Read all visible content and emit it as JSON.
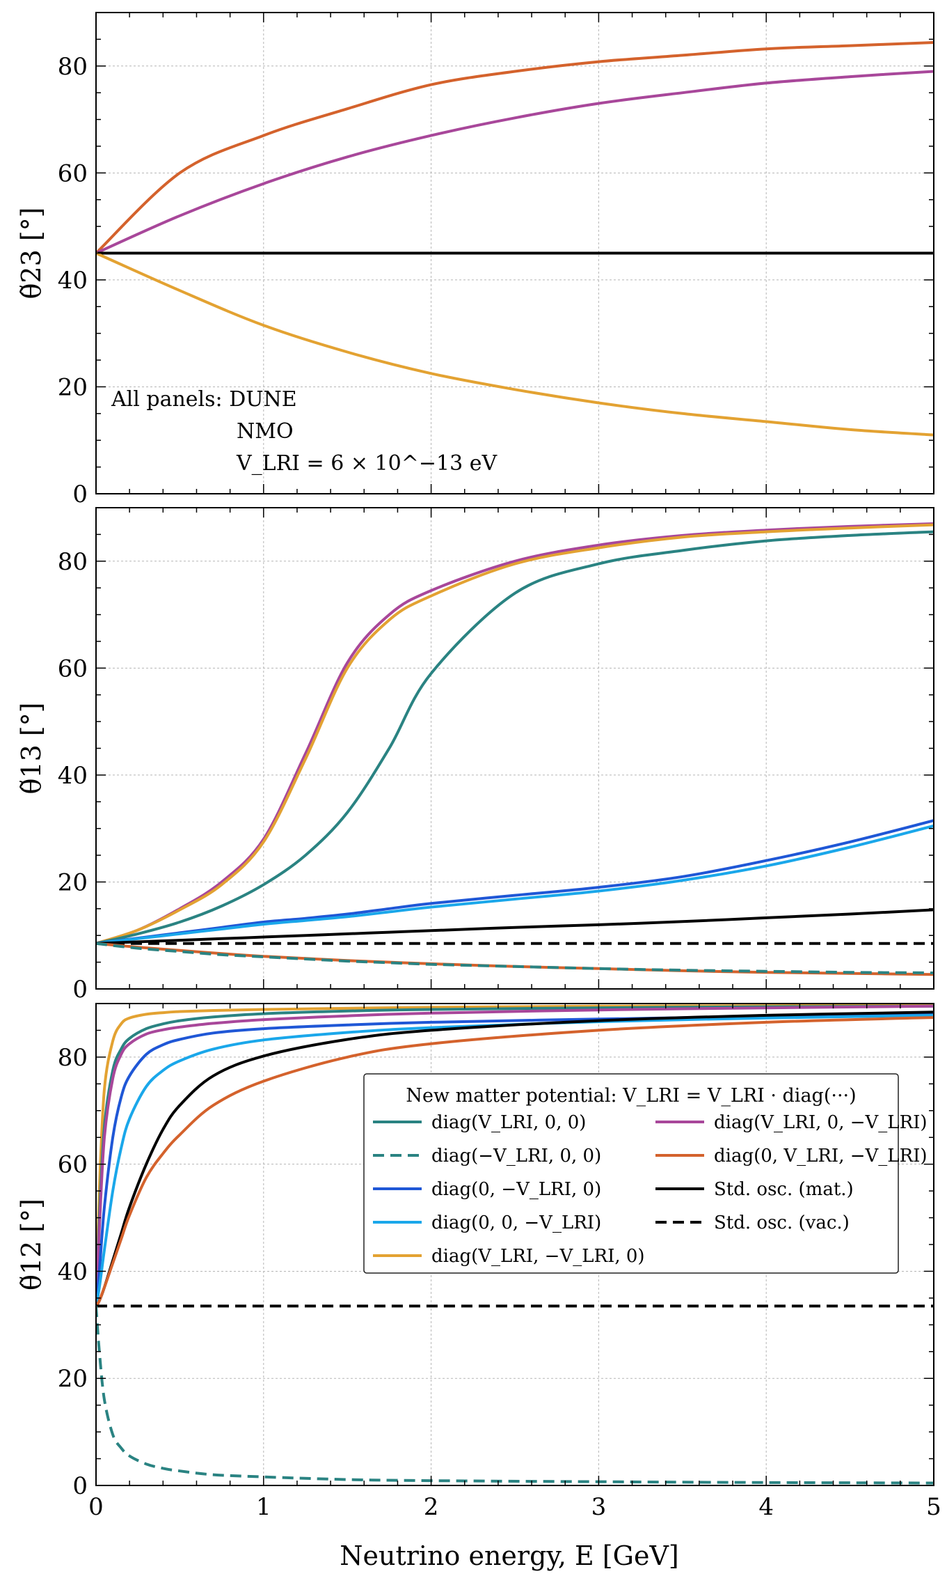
{
  "chart_data": {
    "type": "line",
    "shared_x": {
      "label": "Neutrino energy, E [GeV]",
      "range": [
        0,
        5
      ],
      "ticks": [
        "0",
        "1",
        "2",
        "3",
        "4",
        "5"
      ]
    },
    "annotation": {
      "line1": "All panels: DUNE",
      "line2": "NMO",
      "line3": "V_LRI = 6 × 10^−13 eV"
    },
    "legend": {
      "title": "New matter potential: V_LRI = V_LRI · diag(···)",
      "entries": [
        {
          "key": "diag_v00",
          "label": "diag(V_LRI, 0, 0)",
          "color": "#2a8382",
          "dash": "solid"
        },
        {
          "key": "diag_mv00",
          "label": "diag(−V_LRI, 0, 0)",
          "color": "#2a8382",
          "dash": "dashed"
        },
        {
          "key": "diag_0mv0",
          "label": "diag(0, −V_LRI, 0)",
          "color": "#1f57d6",
          "dash": "solid"
        },
        {
          "key": "diag_00mv",
          "label": "diag(0, 0, −V_LRI)",
          "color": "#1aa7ea",
          "dash": "solid"
        },
        {
          "key": "diag_vmv0",
          "label": "diag(V_LRI, −V_LRI, 0)",
          "color": "#e3a232",
          "dash": "solid"
        },
        {
          "key": "diag_v0mv",
          "label": "diag(V_LRI, 0, −V_LRI)",
          "color": "#a8479a",
          "dash": "solid"
        },
        {
          "key": "diag_0vmv",
          "label": "diag(0, V_LRI, −V_LRI)",
          "color": "#d4622c",
          "dash": "solid"
        },
        {
          "key": "std_mat",
          "label": "Std. osc. (mat.)",
          "color": "#000000",
          "dash": "solid"
        },
        {
          "key": "std_vac",
          "label": "Std. osc. (vac.)",
          "color": "#000000",
          "dash": "dashed"
        }
      ]
    },
    "panels": [
      {
        "id": "theta23",
        "ylabel": "θ̃23 [°]",
        "ylim": [
          0,
          90
        ],
        "yticks": [
          "0",
          "20",
          "40",
          "60",
          "80"
        ],
        "x": [
          0,
          0.5,
          1,
          1.5,
          2,
          2.5,
          3,
          3.5,
          4,
          4.5,
          5
        ],
        "series": [
          {
            "key": "diag_0vmv",
            "values": [
              45,
              60,
              67,
              72,
              76.5,
              79,
              80.8,
              82,
              83.2,
              83.8,
              84.4
            ]
          },
          {
            "key": "diag_v0mv",
            "values": [
              45,
              52,
              58,
              63,
              67,
              70.3,
              73,
              75,
              76.8,
              78,
              79
            ]
          },
          {
            "key": "std_mat",
            "values": [
              45,
              45,
              45,
              45,
              45,
              45,
              45,
              45,
              45,
              45,
              45
            ]
          },
          {
            "key": "diag_vmv0",
            "values": [
              45,
              38,
              31.5,
              26.5,
              22.5,
              19.5,
              17,
              15,
              13.5,
              12,
              11
            ]
          }
        ]
      },
      {
        "id": "theta13",
        "ylabel": "θ̃13 [°]",
        "ylim": [
          0,
          90
        ],
        "yticks": [
          "0",
          "20",
          "40",
          "60",
          "80"
        ],
        "x": [
          0,
          0.25,
          0.5,
          0.75,
          1,
          1.25,
          1.5,
          1.75,
          2,
          2.5,
          3,
          3.5,
          4,
          4.5,
          5
        ],
        "series": [
          {
            "key": "diag_v0mv",
            "values": [
              8.5,
              11,
              15,
              20,
              28,
              44,
              61,
              70,
              74.5,
              80,
              83,
              84.8,
              85.8,
              86.5,
              87
            ]
          },
          {
            "key": "diag_vmv0",
            "values": [
              8.5,
              11,
              14.8,
              19.5,
              27.5,
              43,
              60,
              69,
              73.5,
              79.5,
              82.5,
              84.5,
              85.5,
              86.2,
              86.8
            ]
          },
          {
            "key": "diag_v00",
            "values": [
              8.5,
              10.3,
              12.5,
              15.5,
              19.5,
              25,
              33,
              45,
              59,
              74,
              79.5,
              82,
              83.8,
              84.8,
              85.5
            ]
          },
          {
            "key": "diag_0mv0",
            "values": [
              8.5,
              9.5,
              10.5,
              11.5,
              12.5,
              13.2,
              14,
              15,
              16,
              17.5,
              19,
              21,
              24,
              27.5,
              31.5
            ]
          },
          {
            "key": "diag_00mv",
            "values": [
              8.5,
              9.4,
              10.3,
              11.2,
              12.1,
              12.8,
              13.5,
              14.4,
              15.3,
              16.8,
              18.3,
              20.3,
              23,
              26.5,
              30.5
            ]
          },
          {
            "key": "std_mat",
            "values": [
              8.5,
              8.8,
              9.1,
              9.4,
              9.7,
              10,
              10.3,
              10.6,
              10.9,
              11.5,
              12,
              12.6,
              13.3,
              14,
              14.8
            ]
          },
          {
            "key": "std_vac",
            "values": [
              8.5,
              8.5,
              8.5,
              8.5,
              8.5,
              8.5,
              8.5,
              8.5,
              8.5,
              8.5,
              8.5,
              8.5,
              8.5,
              8.5,
              8.5
            ]
          },
          {
            "key": "diag_0vmv",
            "values": [
              8.5,
              7.8,
              7.2,
              6.6,
              6.1,
              5.7,
              5.3,
              5,
              4.7,
              4.2,
              3.8,
              3.4,
              3.1,
              2.9,
              2.7
            ]
          },
          {
            "key": "diag_mv00",
            "values": [
              8.5,
              7.6,
              7,
              6.4,
              6,
              5.6,
              5.2,
              4.9,
              4.6,
              4.2,
              3.8,
              3.5,
              3.3,
              3.1,
              3
            ]
          }
        ]
      },
      {
        "id": "theta12",
        "ylabel": "θ̃12 [°]",
        "ylim": [
          0,
          90
        ],
        "yticks": [
          "0",
          "20",
          "40",
          "60",
          "80"
        ],
        "x": [
          0,
          0.02,
          0.05,
          0.1,
          0.15,
          0.2,
          0.3,
          0.4,
          0.5,
          0.7,
          1,
          1.5,
          2,
          3,
          4,
          5
        ],
        "series": [
          {
            "key": "diag_vmv0",
            "values": [
              33.5,
              55,
              74,
              83,
              86.2,
              87.3,
              88,
              88.3,
              88.5,
              88.7,
              88.9,
              89.1,
              89.3,
              89.5,
              89.6,
              89.7
            ]
          },
          {
            "key": "diag_v00",
            "values": [
              33.5,
              50,
              67,
              77.5,
              81.5,
              83.5,
              85.3,
              86.2,
              86.8,
              87.5,
              88.1,
              88.6,
              88.9,
              89.2,
              89.4,
              89.5
            ]
          },
          {
            "key": "diag_v0mv",
            "values": [
              33.5,
              48,
              65,
              76,
              80.5,
              82.5,
              84.3,
              85.1,
              85.6,
              86.3,
              87,
              87.7,
              88.2,
              88.8,
              89.2,
              89.5
            ]
          },
          {
            "key": "diag_0mv0",
            "values": [
              33.5,
              40,
              52,
              65,
              72.5,
              76.5,
              80.5,
              82.3,
              83.3,
              84.5,
              85.3,
              86,
              86.5,
              87.1,
              87.6,
              88
            ]
          },
          {
            "key": "diag_00mv",
            "values": [
              33.5,
              37,
              44,
              55,
              63,
              68.5,
              74.5,
              77.5,
              79.3,
              81.5,
              83.2,
              84.6,
              85.5,
              86.6,
              87.3,
              87.8
            ]
          },
          {
            "key": "std_mat",
            "values": [
              33.5,
              34.5,
              37,
              42,
              47,
              52,
              60,
              66.5,
              71,
              76.5,
              80.2,
              83.3,
              85,
              86.8,
              87.8,
              88.4
            ]
          },
          {
            "key": "diag_0vmv",
            "values": [
              33.5,
              34.5,
              37,
              41.5,
              46,
              50.5,
              57.5,
              62,
              65.5,
              71,
              75.5,
              80,
              82.5,
              85,
              86.5,
              87.4
            ]
          },
          {
            "key": "std_vac",
            "values": [
              33.5,
              33.5,
              33.5,
              33.5,
              33.5,
              33.5,
              33.5,
              33.5,
              33.5,
              33.5,
              33.5,
              33.5,
              33.5,
              33.5,
              33.5,
              33.5
            ]
          },
          {
            "key": "diag_mv00",
            "values": [
              33.5,
              25,
              16,
              9.5,
              7,
              5.5,
              4,
              3.2,
              2.7,
              2,
              1.6,
              1.1,
              0.9,
              0.7,
              0.55,
              0.45
            ]
          }
        ]
      }
    ]
  }
}
